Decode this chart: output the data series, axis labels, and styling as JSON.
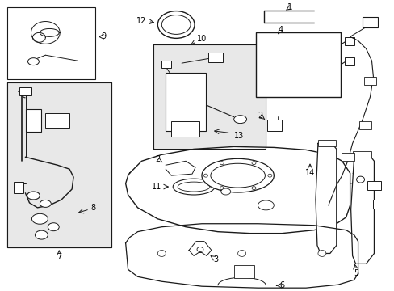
{
  "background_color": "#ffffff",
  "line_color": "#1a1a1a",
  "gray_fill": "#e8e8e8",
  "fig_width": 4.89,
  "fig_height": 3.6,
  "dpi": 100
}
